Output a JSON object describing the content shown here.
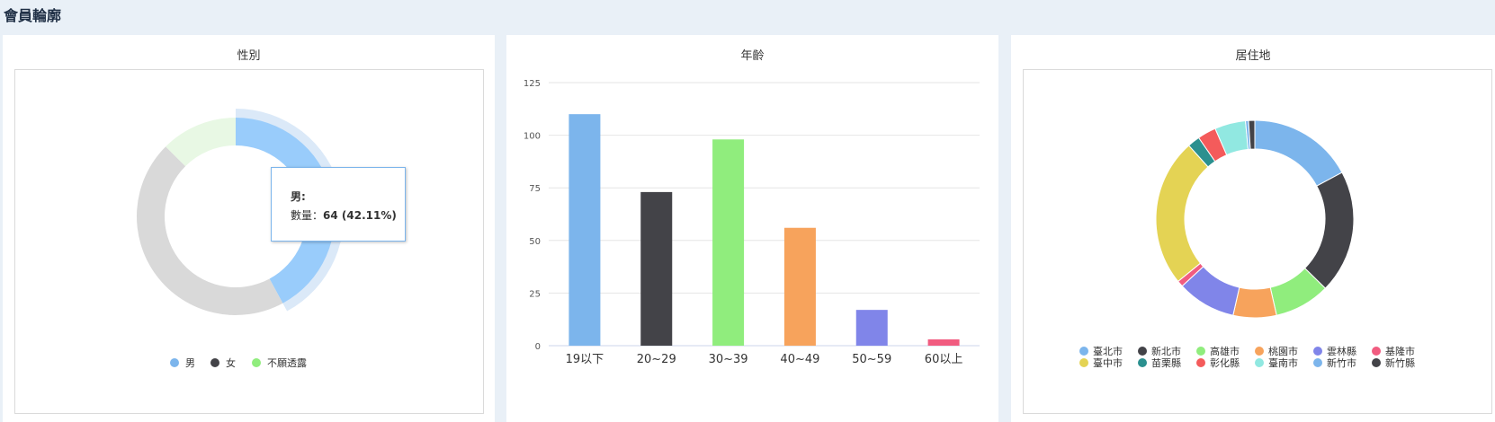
{
  "page": {
    "title": "會員輪廓"
  },
  "colors": {
    "palette": [
      "#7cb5ec",
      "#434348",
      "#90ed7d",
      "#f7a35c",
      "#8085e9",
      "#f15c80",
      "#e4d354",
      "#2b908f",
      "#f45b5b",
      "#91e8e1",
      "#7cb5ec",
      "#434348"
    ],
    "gender_slices": [
      "#99ccfb",
      "#d9d9d9",
      "#e8f8e4"
    ],
    "gender_legend": [
      "#7cb5ec",
      "#434348",
      "#90ed7d"
    ]
  },
  "chart_data": [
    {
      "type": "pie",
      "title": "性別",
      "donut": true,
      "labels": [
        "男",
        "女",
        "不願透露"
      ],
      "values": [
        64,
        69,
        19
      ],
      "highlighted": "男",
      "tooltip": {
        "line1": "男:",
        "line2_label": "數量：",
        "line2_value": "64 (42.11%)"
      },
      "legend": "bottom"
    },
    {
      "type": "bar",
      "title": "年齡",
      "categories": [
        "19以下",
        "20~29",
        "30~39",
        "40~49",
        "50~59",
        "60以上"
      ],
      "values": [
        110,
        73,
        98,
        56,
        17,
        3
      ],
      "ylim": [
        0,
        125
      ],
      "yticks": [
        0,
        25,
        50,
        75,
        100,
        125
      ],
      "grid": true
    },
    {
      "type": "pie",
      "title": "居住地",
      "donut": true,
      "labels": [
        "臺北市",
        "新北市",
        "高雄市",
        "桃園市",
        "雲林縣",
        "基隆市",
        "臺中市",
        "苗栗縣",
        "彰化縣",
        "臺南市",
        "新竹市",
        "新竹縣"
      ],
      "values": [
        34,
        40,
        18,
        14,
        19,
        2,
        48,
        4,
        6,
        10,
        1,
        2
      ],
      "legend": "bottom"
    }
  ]
}
